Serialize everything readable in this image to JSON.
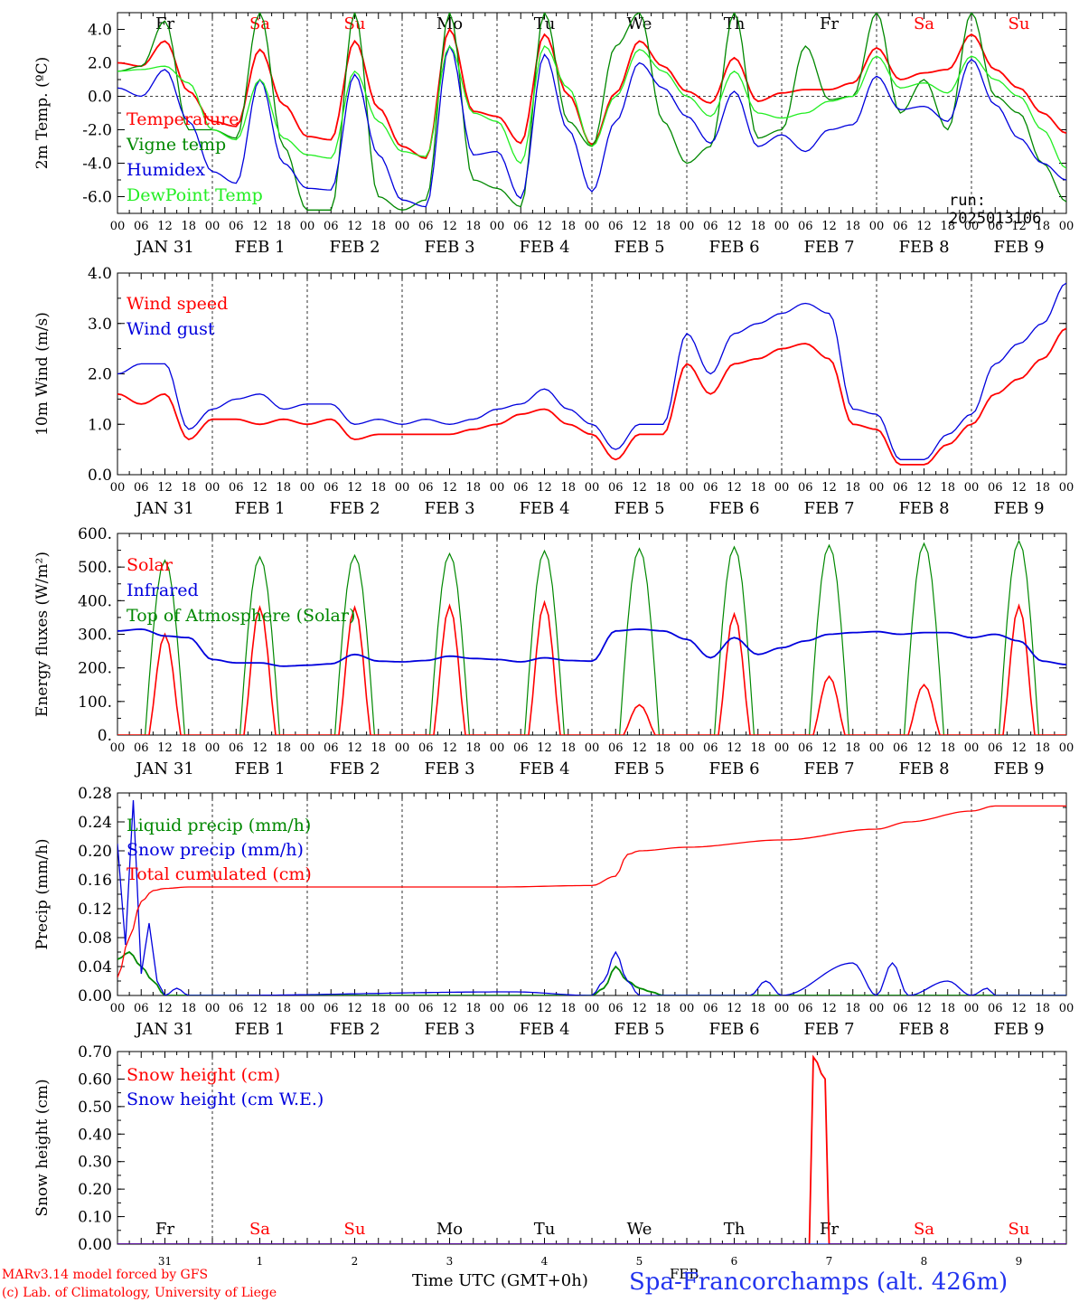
{
  "header": {
    "run_label": "run: 2025013106",
    "footer_left_1": "MARv3.14 model forced by GFS",
    "footer_left_2": "(c) Lab. of Climatology, University of Liege",
    "footer_axis_title": "Time UTC (GMT+0h)",
    "footer_station": "Spa-Francorchamps (alt. 426m)",
    "footer_month": "FEB"
  },
  "time_axis": {
    "hour_ticks": [
      "00",
      "06",
      "12",
      "18"
    ],
    "end_tick": "00",
    "date_labels": [
      "JAN 31",
      "FEB 1",
      "FEB 2",
      "FEB 3",
      "FEB 4",
      "FEB 5",
      "FEB 6",
      "FEB 7",
      "FEB 8",
      "FEB 9"
    ],
    "weekdays": [
      "Fr",
      "Sa",
      "Su",
      "Mo",
      "Tu",
      "We",
      "Th",
      "Fr",
      "Sa",
      "Su"
    ],
    "weekend_flags": [
      false,
      true,
      true,
      false,
      false,
      false,
      false,
      false,
      true,
      true
    ],
    "day_numbers": [
      "31",
      "1",
      "2",
      "3",
      "4",
      "5",
      "6",
      "7",
      "8",
      "9"
    ]
  },
  "colors": {
    "red": "#ff0000",
    "green": "#008800",
    "blue": "#0000dd",
    "lightgreen": "#22ee22",
    "grid": "#000000"
  },
  "chart_data": [
    {
      "type": "line",
      "ylabel": "2m Temp. (ºC)",
      "ylim": [
        -7,
        5
      ],
      "yticks": [
        "-6.0",
        "-4.0",
        "-2.0",
        "0.0",
        "2.0",
        "4.0"
      ],
      "ytick_values": [
        -6,
        -4,
        -2,
        0,
        2,
        4
      ],
      "zero_line": true,
      "x_hours": [
        0,
        6,
        12,
        18,
        24,
        30,
        36,
        42,
        48,
        54,
        60,
        66,
        72,
        78,
        84,
        90,
        96,
        102,
        108,
        114,
        120,
        126,
        132,
        138,
        144,
        150,
        156,
        162,
        168,
        174,
        180,
        186,
        192,
        198,
        204,
        210,
        216,
        222,
        228,
        234,
        240
      ],
      "series": [
        {
          "name": "Temperature",
          "color": "#ff0000",
          "values": [
            2.0,
            1.8,
            3.3,
            0.3,
            -1.5,
            -1.8,
            2.8,
            -0.5,
            -2.4,
            -2.6,
            3.3,
            -0.7,
            -3.0,
            -3.7,
            4.0,
            -0.9,
            -1.2,
            -2.8,
            3.7,
            0.1,
            -2.9,
            0.2,
            3.3,
            1.8,
            0.3,
            -0.4,
            2.3,
            -0.3,
            0.2,
            0.4,
            0.4,
            0.8,
            2.9,
            1.0,
            1.4,
            1.6,
            3.7,
            1.6,
            0.5,
            -1.0,
            -2.2
          ]
        },
        {
          "name": "Vigne temp",
          "color": "#008800",
          "values": [
            1.5,
            1.8,
            4.5,
            -2.0,
            -2.0,
            -2.5,
            5.0,
            -3.0,
            -6.8,
            -6.8,
            5.0,
            -6.0,
            -6.8,
            -6.2,
            5.0,
            -5.0,
            -5.5,
            -6.6,
            5.0,
            -1.5,
            -3.0,
            3.0,
            5.0,
            -1.5,
            -4.0,
            -3.0,
            5.0,
            -2.5,
            -2.0,
            3.0,
            -0.2,
            0.0,
            5.0,
            -1.0,
            1.0,
            -2.0,
            5.0,
            0.0,
            -1.0,
            -4.0,
            -6.3
          ]
        },
        {
          "name": "Humidex",
          "color": "#0000dd",
          "values": [
            0.5,
            0.0,
            1.6,
            -1.5,
            -4.5,
            -5.2,
            1.0,
            -4.0,
            -5.5,
            -5.6,
            1.3,
            -3.5,
            -6.2,
            -6.6,
            3.0,
            -3.5,
            -3.3,
            -6.1,
            2.5,
            -2.0,
            -5.7,
            -1.5,
            2.0,
            0.5,
            -1.2,
            -2.8,
            0.3,
            -3.0,
            -2.3,
            -3.3,
            -2.0,
            -1.7,
            1.2,
            -0.8,
            -0.6,
            -1.5,
            2.2,
            -0.5,
            -2.5,
            -4.0,
            -5.0
          ]
        },
        {
          "name": "DewPoint Temp",
          "color": "#22ee22",
          "values": [
            1.5,
            1.6,
            1.8,
            0.8,
            -2.0,
            -2.6,
            1.0,
            -2.5,
            -3.5,
            -3.7,
            1.5,
            -1.5,
            -3.3,
            -3.6,
            3.0,
            -1.0,
            -1.5,
            -4.0,
            3.0,
            0.5,
            -3.0,
            0.0,
            2.8,
            1.5,
            0.0,
            -1.2,
            1.5,
            -1.0,
            -1.3,
            -1.0,
            -0.3,
            0.0,
            2.4,
            0.5,
            0.8,
            0.2,
            2.4,
            1.0,
            0.0,
            -2.0,
            -4.3
          ]
        }
      ]
    },
    {
      "type": "line",
      "ylabel": "10m Wind (m/s)",
      "ylim": [
        0,
        4
      ],
      "yticks": [
        "0.0",
        "1.0",
        "2.0",
        "3.0",
        "4.0"
      ],
      "ytick_values": [
        0,
        1,
        2,
        3,
        4
      ],
      "zero_line": false,
      "x_hours": [
        0,
        6,
        12,
        18,
        24,
        30,
        36,
        42,
        48,
        54,
        60,
        66,
        72,
        78,
        84,
        90,
        96,
        102,
        108,
        114,
        120,
        126,
        132,
        138,
        144,
        150,
        156,
        162,
        168,
        174,
        180,
        186,
        192,
        198,
        204,
        210,
        216,
        222,
        228,
        234,
        240
      ],
      "series": [
        {
          "name": "Wind speed",
          "color": "#ff0000",
          "values": [
            1.6,
            1.4,
            1.6,
            0.7,
            1.1,
            1.1,
            1.0,
            1.1,
            1.0,
            1.1,
            0.7,
            0.8,
            0.8,
            0.8,
            0.8,
            0.9,
            1.0,
            1.2,
            1.3,
            1.0,
            0.8,
            0.3,
            0.8,
            0.8,
            2.2,
            1.6,
            2.2,
            2.3,
            2.5,
            2.6,
            2.3,
            1.0,
            0.9,
            0.2,
            0.2,
            0.6,
            1.0,
            1.6,
            1.9,
            2.3,
            2.9
          ]
        },
        {
          "name": "Wind gust",
          "color": "#0000dd",
          "values": [
            2.0,
            2.2,
            2.2,
            0.9,
            1.3,
            1.5,
            1.6,
            1.3,
            1.4,
            1.4,
            1.0,
            1.1,
            1.0,
            1.1,
            1.0,
            1.1,
            1.3,
            1.4,
            1.7,
            1.3,
            1.0,
            0.5,
            1.0,
            1.0,
            2.8,
            2.0,
            2.8,
            3.0,
            3.2,
            3.4,
            3.2,
            1.3,
            1.2,
            0.3,
            0.3,
            0.8,
            1.2,
            2.2,
            2.6,
            3.0,
            3.8
          ]
        }
      ]
    },
    {
      "type": "line",
      "ylabel": "Energy fluxes (W/m²)",
      "ylim": [
        0,
        600
      ],
      "yticks": [
        "0.",
        "100.",
        "200.",
        "300.",
        "400.",
        "500.",
        "600."
      ],
      "ytick_values": [
        0,
        100,
        200,
        300,
        400,
        500,
        600
      ],
      "zero_line": false,
      "solar_peaks": [
        300,
        380,
        380,
        385,
        395,
        90,
        360,
        175,
        150,
        385
      ],
      "toa_peaks": [
        520,
        530,
        535,
        540,
        548,
        555,
        560,
        565,
        570,
        578
      ],
      "series": [
        {
          "name": "Solar",
          "color": "#ff0000"
        },
        {
          "name": "Infrared",
          "color": "#0000dd",
          "x_hours": [
            0,
            6,
            12,
            18,
            24,
            30,
            36,
            42,
            48,
            54,
            60,
            66,
            72,
            78,
            84,
            90,
            96,
            102,
            108,
            114,
            120,
            126,
            132,
            138,
            144,
            150,
            156,
            162,
            168,
            174,
            180,
            186,
            192,
            198,
            204,
            210,
            216,
            222,
            228,
            234,
            240
          ],
          "values": [
            310,
            315,
            295,
            290,
            225,
            215,
            215,
            205,
            208,
            212,
            240,
            220,
            218,
            222,
            235,
            228,
            225,
            218,
            230,
            222,
            220,
            310,
            315,
            310,
            285,
            230,
            290,
            240,
            260,
            280,
            300,
            305,
            308,
            300,
            305,
            305,
            290,
            300,
            280,
            220,
            210
          ]
        },
        {
          "name": "Top of Atmosphere (Solar)",
          "color": "#008800"
        }
      ]
    },
    {
      "type": "line",
      "ylabel": "Precip (mm/h)",
      "ylim": [
        0,
        0.28
      ],
      "yticks": [
        "0.00",
        "0.04",
        "0.08",
        "0.12",
        "0.16",
        "0.20",
        "0.24",
        "0.28"
      ],
      "ytick_values": [
        0,
        0.04,
        0.08,
        0.12,
        0.16,
        0.2,
        0.24,
        0.28
      ],
      "zero_line": false,
      "series": [
        {
          "name": "Liquid precip (mm/h)",
          "color": "#008800",
          "x_hours": [
            0,
            3,
            6,
            9,
            12,
            15,
            18,
            24,
            120,
            123,
            126,
            129,
            132,
            135,
            138,
            141,
            144,
            168,
            192,
            240
          ],
          "values": [
            0.05,
            0.06,
            0.04,
            0.02,
            0.0,
            0.0,
            0.0,
            0.0,
            0.0,
            0.01,
            0.04,
            0.02,
            0.01,
            0.005,
            0.0,
            0.0,
            0.0,
            0.0,
            0.0,
            0.0
          ]
        },
        {
          "name": "Snow precip (mm/h)",
          "color": "#0000dd",
          "x_hours": [
            0,
            2,
            4,
            6,
            8,
            10,
            12,
            15,
            18,
            24,
            100,
            120,
            123,
            126,
            129,
            132,
            138,
            160,
            164,
            168,
            186,
            192,
            196,
            200,
            210,
            216,
            220,
            222,
            240
          ],
          "values": [
            0.21,
            0.07,
            0.27,
            0.03,
            0.1,
            0.02,
            0.0,
            0.01,
            0.0,
            0.0,
            0.005,
            0.0,
            0.02,
            0.06,
            0.02,
            0.0,
            0.0,
            0.0,
            0.02,
            0.0,
            0.045,
            0.0,
            0.045,
            0.0,
            0.02,
            0.0,
            0.01,
            0.0,
            0.0
          ]
        },
        {
          "name": "Total cumulated (cm)",
          "color": "#ff0000",
          "x_hours": [
            0,
            3,
            6,
            9,
            12,
            18,
            24,
            48,
            72,
            96,
            120,
            126,
            129,
            132,
            144,
            168,
            192,
            200,
            216,
            222,
            240
          ],
          "values": [
            0.025,
            0.08,
            0.13,
            0.145,
            0.148,
            0.15,
            0.15,
            0.15,
            0.15,
            0.15,
            0.152,
            0.165,
            0.195,
            0.2,
            0.205,
            0.215,
            0.23,
            0.24,
            0.255,
            0.262,
            0.262
          ]
        }
      ]
    },
    {
      "type": "line",
      "ylabel": "Snow height (cm)",
      "ylim": [
        0,
        0.7
      ],
      "yticks": [
        "0.00",
        "0.10",
        "0.20",
        "0.30",
        "0.40",
        "0.50",
        "0.60",
        "0.70"
      ],
      "ytick_values": [
        0,
        0.1,
        0.2,
        0.3,
        0.4,
        0.5,
        0.6,
        0.7
      ],
      "zero_line": false,
      "series": [
        {
          "name": "Snow height (cm)",
          "color": "#ff0000",
          "x_hours": [
            0,
            175,
            176,
            177,
            178,
            179,
            180,
            240
          ],
          "values": [
            0,
            0,
            0.68,
            0.66,
            0.62,
            0.6,
            0,
            0
          ]
        },
        {
          "name": "Snow height (cm W.E.)",
          "color": "#0000dd",
          "x_hours": [
            0,
            240
          ],
          "values": [
            0,
            0
          ]
        }
      ]
    }
  ]
}
